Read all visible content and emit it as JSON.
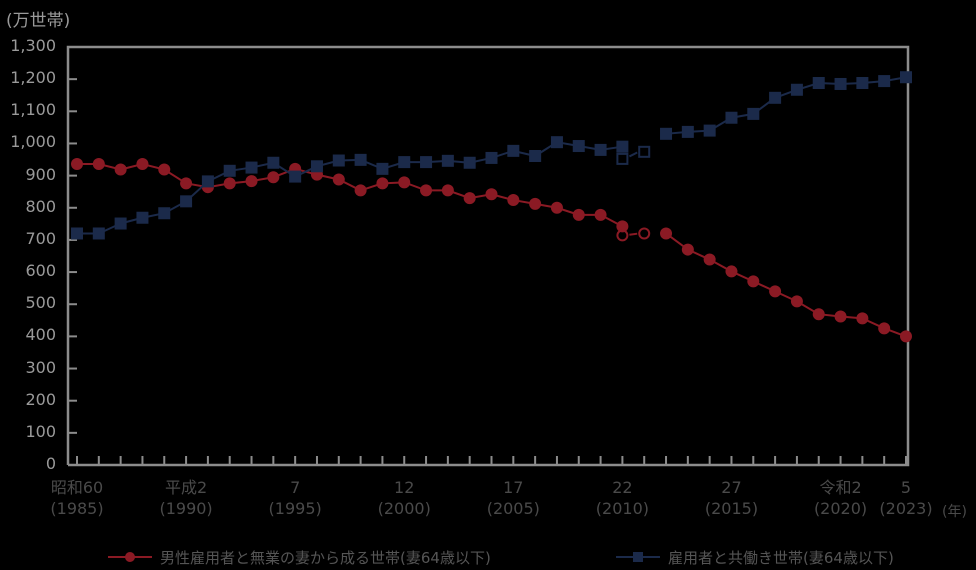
{
  "chart_data": {
    "type": "line",
    "title": "",
    "ylabel": "(万世帯)",
    "xlabel": "(年)",
    "ylim": [
      0,
      1300
    ],
    "yticks": [
      0,
      100,
      200,
      300,
      400,
      500,
      600,
      700,
      800,
      900,
      1000,
      1100,
      1200,
      1300
    ],
    "ytick_labels": [
      "0",
      "100",
      "200",
      "300",
      "400",
      "500",
      "600",
      "700",
      "800",
      "900",
      "1,000",
      "1,100",
      "1,200",
      "1,300"
    ],
    "x": [
      1985,
      1986,
      1987,
      1988,
      1989,
      1990,
      1991,
      1992,
      1993,
      1994,
      1995,
      1996,
      1997,
      1998,
      1999,
      2000,
      2001,
      2002,
      2003,
      2004,
      2005,
      2006,
      2007,
      2008,
      2009,
      2010,
      2011,
      2012,
      2013,
      2014,
      2015,
      2016,
      2017,
      2018,
      2019,
      2020,
      2021,
      2022,
      2023
    ],
    "x_tick_labels": [
      {
        "year": 1985,
        "line1": "昭和60",
        "line2": "(1985)"
      },
      {
        "year": 1990,
        "line1": "平成2",
        "line2": "(1990)"
      },
      {
        "year": 1995,
        "line1": "7",
        "line2": "(1995)"
      },
      {
        "year": 2000,
        "line1": "12",
        "line2": "(2000)"
      },
      {
        "year": 2005,
        "line1": "17",
        "line2": "(2005)"
      },
      {
        "year": 2010,
        "line1": "22",
        "line2": "(2010)"
      },
      {
        "year": 2015,
        "line1": "27",
        "line2": "(2015)"
      },
      {
        "year": 2020,
        "line1": "令和2",
        "line2": "(2020)"
      },
      {
        "year": 2023,
        "line1": "5",
        "line2": "(2023)"
      }
    ],
    "series": [
      {
        "name": "男性雇用者と無業の妻から成る世帯(妻64歳以下)",
        "color": "#8b1a24",
        "marker": "circle",
        "values": [
          936,
          936,
          919,
          936,
          919,
          876,
          864,
          876,
          883,
          895,
          921,
          903,
          888,
          854,
          876,
          879,
          854,
          854,
          830,
          842,
          824,
          812,
          800,
          778,
          778,
          742,
          null,
          720,
          670,
          639,
          602,
          571,
          540,
          509,
          469,
          462,
          456,
          425,
          400
        ],
        "open_points": [
          {
            "x": 2010,
            "y": 714
          },
          {
            "x": 2011,
            "y": 720
          }
        ]
      },
      {
        "name": "雇用者と共働き世帯(妻64歳以下)",
        "color": "#1b2a4a",
        "marker": "square",
        "values": [
          720,
          720,
          751,
          769,
          783,
          820,
          882,
          915,
          925,
          940,
          897,
          929,
          947,
          949,
          921,
          942,
          942,
          946,
          940,
          955,
          977,
          961,
          1004,
          992,
          980,
          990,
          null,
          1030,
          1036,
          1040,
          1080,
          1092,
          1142,
          1167,
          1188,
          1185,
          1188,
          1194,
          1206
        ],
        "open_points": [
          {
            "x": 2010,
            "y": 952
          },
          {
            "x": 2011,
            "y": 974
          }
        ]
      }
    ],
    "legend_position": "bottom",
    "grid": false
  },
  "labels": {
    "unit": "(万世帯)",
    "year_unit": "(年)",
    "legend_red": "男性雇用者と無業の妻から成る世帯(妻64歳以下)",
    "legend_blue": "雇用者と共働き世帯(妻64歳以下)"
  }
}
